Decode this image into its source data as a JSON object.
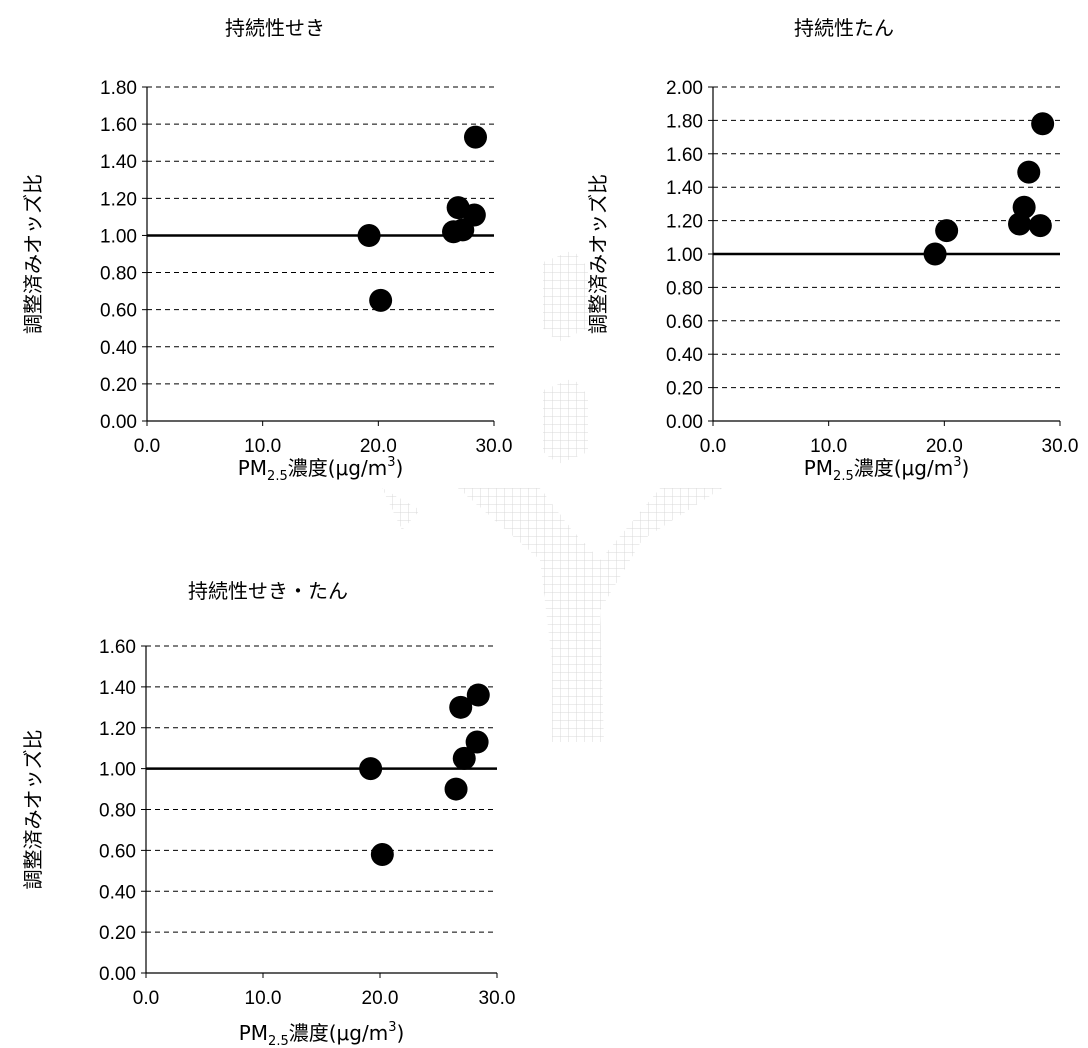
{
  "colors": {
    "marker": "#000000",
    "gridline": "#000000",
    "reference_line": "#000000",
    "watermark": "#c8c8c8"
  },
  "chart_data": [
    {
      "type": "scatter",
      "title": "持続性せき",
      "ylabel": "調整済みオッズ比",
      "xlabel": {
        "prefix": "PM",
        "subscript": "2.5",
        "suffix": "濃度(μg/m",
        "superscript": "3",
        "close": ")"
      },
      "xlim": [
        0,
        30
      ],
      "ylim": [
        0,
        1.8
      ],
      "x_ticks": [
        "0.0",
        "10.0",
        "20.0",
        "30.0"
      ],
      "y_ticks": [
        "0.00",
        "0.20",
        "0.40",
        "0.60",
        "0.80",
        "1.00",
        "1.20",
        "1.40",
        "1.60",
        "1.80"
      ],
      "grid": "horizontal-dashed",
      "reference_line_y": 1.0,
      "points": [
        {
          "x": 19.2,
          "y": 1.0
        },
        {
          "x": 20.2,
          "y": 0.65
        },
        {
          "x": 26.5,
          "y": 1.02
        },
        {
          "x": 26.9,
          "y": 1.15
        },
        {
          "x": 27.3,
          "y": 1.03
        },
        {
          "x": 28.3,
          "y": 1.11
        },
        {
          "x": 28.4,
          "y": 1.53
        }
      ]
    },
    {
      "type": "scatter",
      "title": "持続性たん",
      "ylabel": "調整済みオッズ比",
      "xlabel": {
        "prefix": "PM",
        "subscript": "2.5",
        "suffix": "濃度(μg/m",
        "superscript": "3",
        "close": ")"
      },
      "xlim": [
        0,
        30
      ],
      "ylim": [
        0,
        2.0
      ],
      "x_ticks": [
        "0.0",
        "10.0",
        "20.0",
        "30.0"
      ],
      "y_ticks": [
        "0.00",
        "0.20",
        "0.40",
        "0.60",
        "0.80",
        "1.00",
        "1.20",
        "1.40",
        "1.60",
        "1.80",
        "2.00"
      ],
      "grid": "horizontal-dashed",
      "reference_line_y": 1.0,
      "points": [
        {
          "x": 19.2,
          "y": 1.0
        },
        {
          "x": 20.2,
          "y": 1.14
        },
        {
          "x": 26.5,
          "y": 1.18
        },
        {
          "x": 26.9,
          "y": 1.28
        },
        {
          "x": 27.3,
          "y": 1.49
        },
        {
          "x": 28.3,
          "y": 1.17
        },
        {
          "x": 28.5,
          "y": 1.78
        }
      ]
    },
    {
      "type": "scatter",
      "title": "持続性せき・たん",
      "ylabel": "調整済みオッズ比",
      "xlabel": {
        "prefix": "PM",
        "subscript": "2.5",
        "suffix": "濃度(μg/m",
        "superscript": "3",
        "close": ")"
      },
      "xlim": [
        0,
        30
      ],
      "ylim": [
        0,
        1.6
      ],
      "x_ticks": [
        "0.0",
        "10.0",
        "20.0",
        "30.0"
      ],
      "y_ticks": [
        "0.00",
        "0.20",
        "0.40",
        "0.60",
        "0.80",
        "1.00",
        "1.20",
        "1.40",
        "1.60"
      ],
      "grid": "horizontal-dashed",
      "reference_line_y": 1.0,
      "points": [
        {
          "x": 19.2,
          "y": 1.0
        },
        {
          "x": 20.2,
          "y": 0.58
        },
        {
          "x": 26.5,
          "y": 0.9
        },
        {
          "x": 26.9,
          "y": 1.3
        },
        {
          "x": 27.2,
          "y": 1.05
        },
        {
          "x": 28.3,
          "y": 1.13
        },
        {
          "x": 28.4,
          "y": 1.36
        }
      ]
    }
  ]
}
